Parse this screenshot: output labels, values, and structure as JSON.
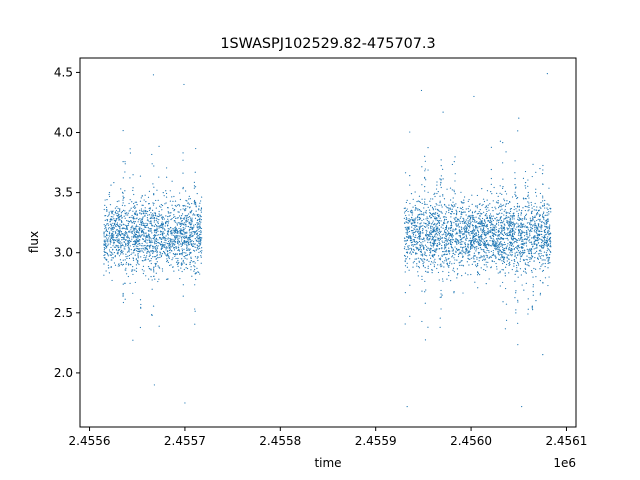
{
  "chart_data": {
    "type": "scatter",
    "title": "1SWASPJ102529.82-475707.3",
    "xlabel": "time",
    "ylabel": "flux",
    "x_offset_label": "1e6",
    "xlim": [
      2455590,
      2456110
    ],
    "ylim": [
      1.55,
      4.62
    ],
    "x_ticks": [
      2455600,
      2455700,
      2455800,
      2455900,
      2456000,
      2456100
    ],
    "x_tick_labels": [
      "2.4556",
      "2.4557",
      "2.4558",
      "2.4559",
      "2.4560",
      "2.4561"
    ],
    "y_ticks": [
      2.0,
      2.5,
      3.0,
      3.5,
      4.0,
      4.5
    ],
    "y_tick_labels": [
      "2.0",
      "2.5",
      "3.0",
      "3.5",
      "4.0",
      "4.5"
    ],
    "grid": false,
    "legend": "none",
    "marker_color": "#1f77b4",
    "series": [
      {
        "seasons": [
          {
            "x_start": 2455615,
            "x_end": 2455718,
            "center": 3.15,
            "spread": 0.2
          },
          {
            "x_start": 2455930,
            "x_end": 2456084,
            "center": 3.15,
            "spread": 0.2
          }
        ],
        "sample_points": [
          {
            "x": 2455616,
            "y": 3.2
          },
          {
            "x": 2455630,
            "y": 3.1
          },
          {
            "x": 2455645,
            "y": 3.25
          },
          {
            "x": 2455667,
            "y": 4.48
          },
          {
            "x": 2455668,
            "y": 1.9
          },
          {
            "x": 2455699,
            "y": 4.4
          },
          {
            "x": 2455700,
            "y": 1.75
          },
          {
            "x": 2455717,
            "y": 3.3
          },
          {
            "x": 2455933,
            "y": 1.72
          },
          {
            "x": 2455948,
            "y": 4.35
          },
          {
            "x": 2456003,
            "y": 4.3
          },
          {
            "x": 2456053,
            "y": 1.72
          },
          {
            "x": 2456050,
            "y": 4.12
          },
          {
            "x": 2456080,
            "y": 4.49
          },
          {
            "x": 2456083,
            "y": 3.1
          }
        ]
      }
    ]
  }
}
